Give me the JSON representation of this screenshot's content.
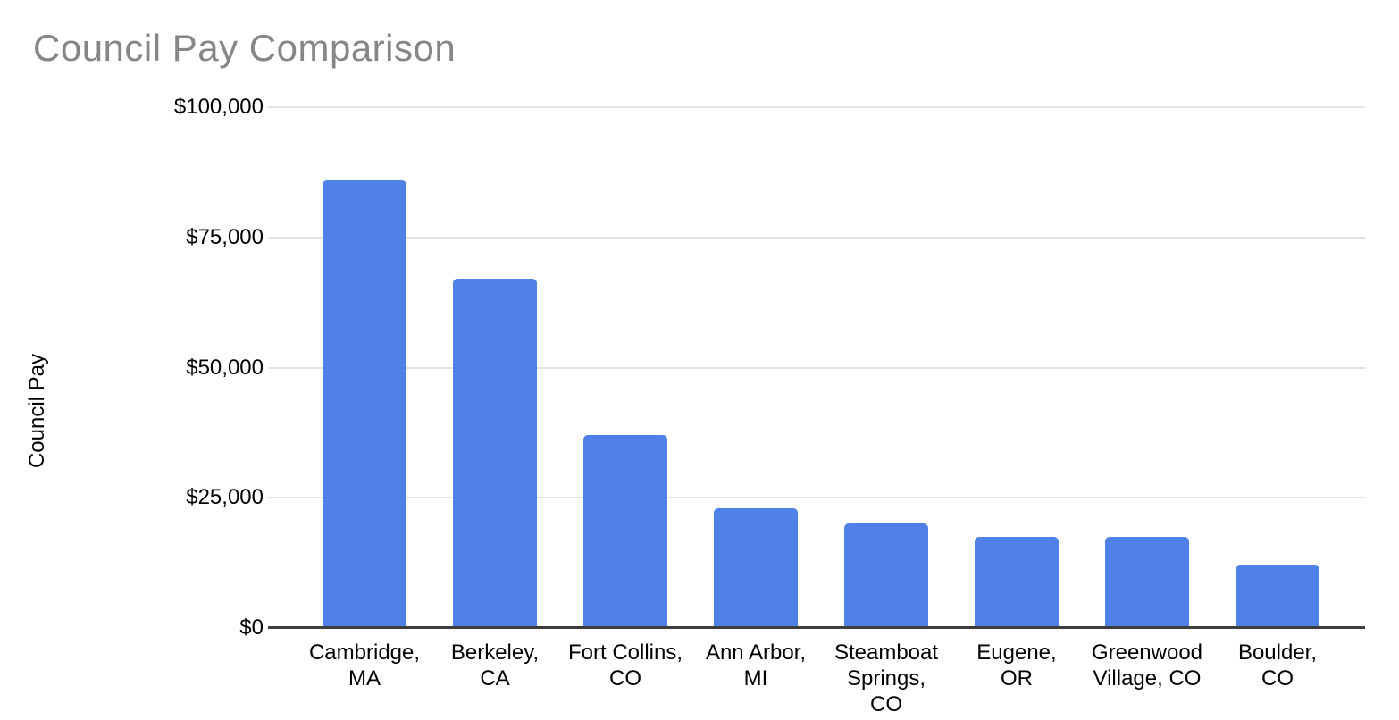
{
  "chart_data": {
    "type": "bar",
    "title": "Council Pay Comparison",
    "ylabel": "Council Pay",
    "xlabel": "",
    "ylim": [
      0,
      100000
    ],
    "grid": true,
    "legend_position": "none",
    "bar_color": "#4f81e9",
    "colors": {
      "grid": "#e3e3e3",
      "axis": "#3e3e3e",
      "title": "#868686",
      "label": "#000000",
      "background": "#ffffff"
    },
    "yticks": [
      {
        "value": 0,
        "label": "$0"
      },
      {
        "value": 25000,
        "label": "$25,000"
      },
      {
        "value": 50000,
        "label": "$50,000"
      },
      {
        "value": 75000,
        "label": "$75,000"
      },
      {
        "value": 100000,
        "label": "$100,000"
      }
    ],
    "categories": [
      "Cambridge, MA",
      "Berkeley, CA",
      "Fort Collins, CO",
      "Ann Arbor, MI",
      "Steamboat Springs, CO",
      "Eugene, OR",
      "Greenwood Village, CO",
      "Boulder, CO"
    ],
    "category_display_lines": [
      "Cambridge,\nMA",
      "Berkeley,\nCA",
      "Fort Collins,\nCO",
      "Ann Arbor,\nMI",
      "Steamboat\nSprings,\nCO",
      "Eugene,\nOR",
      "Greenwood\nVillage, CO",
      "Boulder,\nCO"
    ],
    "values": [
      86000,
      67000,
      37000,
      23000,
      20000,
      17500,
      17500,
      12000
    ]
  }
}
